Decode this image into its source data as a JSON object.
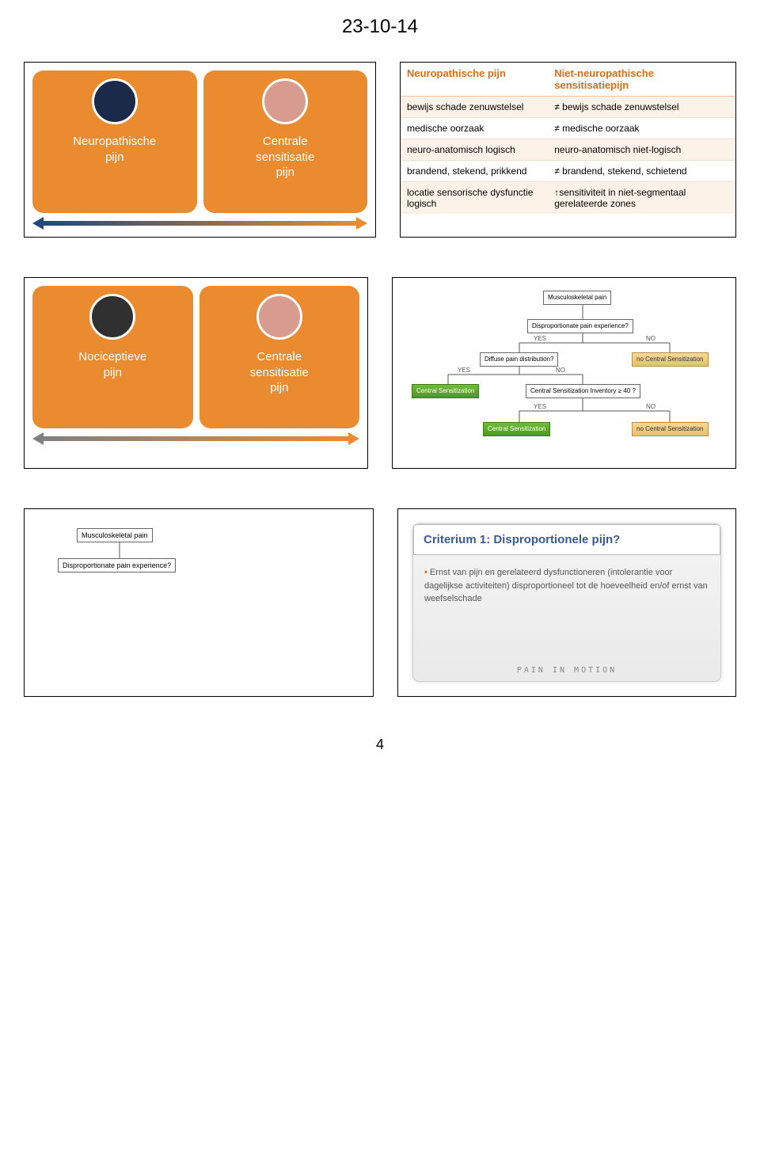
{
  "date": "23-10-14",
  "colors": {
    "orange": "#e98b2e",
    "orange_dark": "#d96d14",
    "blue": "#204a7a",
    "pink": "#d79c8f",
    "grey": "#808080",
    "green": "#5aa82e",
    "tan": "#e8c06a",
    "cream": "#fdf2e8",
    "panel_bg": "#ffffff"
  },
  "row1_left": {
    "card1": {
      "label": "Neuropathische\npijn",
      "circle_bg": "#1a2a48",
      "card_bg": "#e98b2e"
    },
    "card2": {
      "label": "Centrale\nsensitisatie\npijn",
      "circle_bg": "#d79c8f",
      "card_bg": "#e98b2e"
    },
    "arrow_left_color": "#204a7a",
    "arrow_right_color": "#e98b2e"
  },
  "cmp": {
    "head1": "Neuropathische pijn",
    "head2": "Niet-neuropathische sensitisatiepijn",
    "rows": [
      [
        "bewijs schade zenuwstelsel",
        "≠ bewijs schade zenuwstelsel"
      ],
      [
        "medische oorzaak",
        "≠ medische oorzaak"
      ],
      [
        "neuro-anatomisch logisch",
        "neuro-anatomisch niet-logisch"
      ],
      [
        "brandend, stekend, prikkend",
        "≠ brandend, stekend, schietend"
      ],
      [
        "locatie sensorische dysfunctie logisch",
        "↑sensitiviteit in niet-segmentaal gerelateerde zones"
      ]
    ]
  },
  "row2_left": {
    "card1": {
      "label": "Nociceptieve\npijn",
      "circle_bg": "#303030",
      "card_bg": "#e98b2e"
    },
    "card2": {
      "label": "Centrale\nsensitisatie\npijn",
      "circle_bg": "#d79c8f",
      "card_bg": "#e98b2e"
    },
    "arrow_left_color": "#808080",
    "arrow_right_color": "#e98b2e"
  },
  "flow": {
    "nodes": {
      "msk": "Musculoskeletal pain",
      "dispro": "Disproportionate pain experience?",
      "diffuse": "Diffuse pain distribution?",
      "nocs1": "no Central Sensitization",
      "cs1": "Central Sensitization",
      "csi40": "Central Sensitization Inventory ≥ 40 ?",
      "cs2": "Central Sensitization",
      "nocs2": "no Central Sensitization"
    },
    "labels": {
      "yes": "YES",
      "no": "NO"
    }
  },
  "row3_left": {
    "msk": "Musculoskeletal pain",
    "dispro": "Disproportionate pain experience?"
  },
  "crit": {
    "title": "Criterium 1: Disproportionele pijn?",
    "bullet": "Ernst van pijn en gerelateerd dysfunctioneren (intolerantie voor dagelijkse activiteiten) disproportioneel tot de hoeveelheid en/of ernst van weefselschade",
    "footer": "PAIN IN MOTION"
  },
  "pagenum": "4"
}
